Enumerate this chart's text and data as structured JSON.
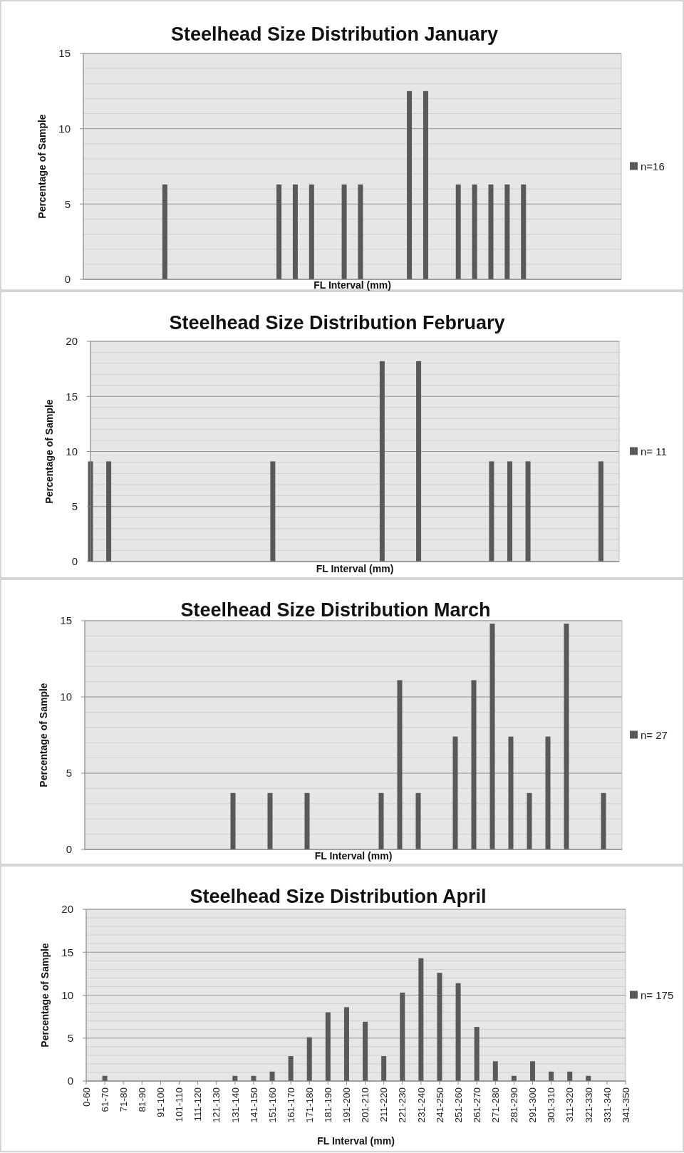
{
  "chart_data": [
    {
      "type": "bar",
      "title": "Steelhead Size Distribution January",
      "xlabel": "FL Interval (mm)",
      "ylabel": "Percentage of Sample",
      "categories": [
        null,
        null,
        null,
        null,
        null,
        null,
        null,
        null,
        null,
        null,
        null,
        null,
        null,
        null,
        null,
        null,
        null,
        null,
        null,
        null,
        null,
        null,
        null,
        null,
        null,
        null,
        null,
        null,
        null,
        null,
        null,
        null,
        null,
        null
      ],
      "series": [
        {
          "name": "n=16",
          "color": "#595959",
          "values": [
            0,
            0,
            0,
            0,
            0,
            6.3,
            0,
            0,
            0,
            0,
            0,
            0,
            6.3,
            6.3,
            6.3,
            0,
            6.3,
            6.3,
            0,
            0,
            12.5,
            12.5,
            0,
            6.3,
            6.3,
            6.3,
            6.3,
            6.3,
            0,
            0,
            0,
            0,
            0,
            0
          ]
        }
      ],
      "ylim": [
        0,
        15
      ],
      "yticks": [
        0,
        5,
        10,
        15
      ],
      "grid": "y",
      "legend": "right",
      "tick_labels": "y"
    },
    {
      "type": "bar",
      "title": "Steelhead Size Distribution February",
      "xlabel": "FL Interval (mm)",
      "ylabel": "Percentage of Sample",
      "categories": [
        null,
        null,
        null,
        null,
        null,
        null,
        null,
        null,
        null,
        null,
        null,
        null,
        null,
        null,
        null,
        null,
        null,
        null,
        null,
        null,
        null,
        null,
        null,
        null,
        null,
        null,
        null,
        null,
        null,
        null
      ],
      "series": [
        {
          "name": "n= 11",
          "color": "#595959",
          "values": [
            9.1,
            9.1,
            0,
            0,
            0,
            0,
            0,
            0,
            0,
            0,
            9.1,
            0,
            0,
            0,
            0,
            0,
            18.2,
            0,
            18.2,
            0,
            0,
            0,
            9.1,
            9.1,
            9.1,
            0,
            0,
            0,
            9.1,
            0
          ]
        }
      ],
      "ylim": [
        0,
        20
      ],
      "yticks": [
        0,
        5,
        10,
        15,
        20
      ],
      "grid": "y",
      "legend": "right",
      "tick_labels": "y"
    },
    {
      "type": "bar",
      "title": "Steelhead Size Distribution March",
      "xlabel": "FL Interval (mm)",
      "ylabel": "Percentage of Sample",
      "categories": [
        null,
        null,
        null,
        null,
        null,
        null,
        null,
        null,
        null,
        null,
        null,
        null,
        null,
        null,
        null,
        null,
        null,
        null,
        null,
        null,
        null,
        null,
        null,
        null,
        null,
        null,
        null,
        null,
        null,
        null
      ],
      "series": [
        {
          "name": "n= 27",
          "color": "#595959",
          "values": [
            0,
            0,
            0,
            0,
            0,
            0,
            0,
            0,
            3.7,
            0,
            3.7,
            0,
            3.7,
            0,
            0,
            0,
            3.7,
            11.1,
            3.7,
            0,
            7.4,
            11.1,
            14.8,
            7.4,
            3.7,
            7.4,
            14.8,
            0,
            3.7,
            0
          ]
        }
      ],
      "ylim": [
        0,
        15
      ],
      "yticks": [
        0,
        5,
        10,
        15
      ],
      "grid": "y",
      "legend": "right",
      "tick_labels": "y"
    },
    {
      "type": "bar",
      "title": "Steelhead Size Distribution April",
      "xlabel": "FL Interval (mm)",
      "ylabel": "Percentage of Sample",
      "categories": [
        "0-60",
        "61-70",
        "71-80",
        "81-90",
        "91-100",
        "101-110",
        "111-120",
        "121-130",
        "131-140",
        "141-150",
        "151-160",
        "161-170",
        "171-180",
        "181-190",
        "191-200",
        "201-210",
        "211-220",
        "221-230",
        "231-240",
        "241-250",
        "251-260",
        "261-270",
        "271-280",
        "281-290",
        "291-300",
        "301-310",
        "311-320",
        "321-330",
        "331-340",
        "341-350"
      ],
      "series": [
        {
          "name": "n= 175",
          "color": "#595959",
          "values": [
            0,
            0.6,
            0,
            0,
            0,
            0,
            0,
            0,
            0.6,
            0.6,
            1.1,
            2.9,
            5.1,
            8.0,
            8.6,
            6.9,
            2.9,
            10.3,
            14.3,
            12.6,
            11.4,
            6.3,
            2.3,
            0.6,
            2.3,
            1.1,
            1.1,
            0.6,
            0,
            0
          ]
        }
      ],
      "ylim": [
        0,
        20
      ],
      "yticks": [
        0,
        5,
        10,
        15,
        20
      ],
      "grid": "y",
      "legend": "right"
    }
  ]
}
